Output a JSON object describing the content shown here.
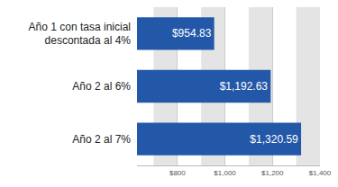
{
  "chart_data": {
    "type": "bar",
    "orientation": "horizontal",
    "categories": [
      "Año 1 con tasa inicial descontada al 4%",
      "Año 2 al 6%",
      "Año 2 al 7%"
    ],
    "values": [
      954.83,
      1192.63,
      1320.59
    ],
    "value_labels": [
      "$954.83",
      "$1,192.63",
      "$1,320.59"
    ],
    "data_labels": true,
    "color": "#2358a8",
    "xlim": [
      630,
      1400
    ],
    "xticks": [
      {
        "value": 800,
        "label": "$800"
      },
      {
        "value": 1000,
        "label": "$1,000"
      },
      {
        "value": 1200,
        "label": "$1,200"
      },
      {
        "value": 1400,
        "label": "$1,400"
      }
    ],
    "grid": true
  }
}
